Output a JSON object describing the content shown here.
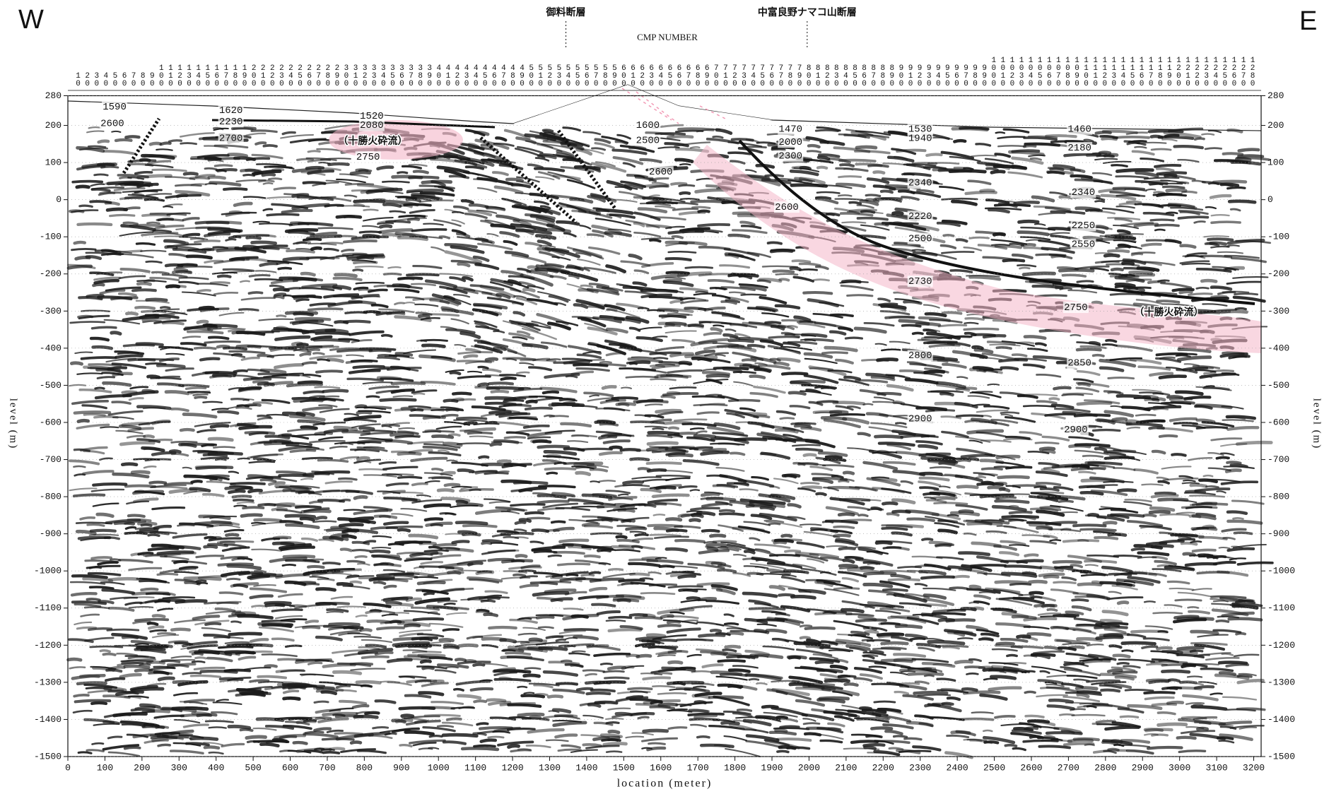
{
  "chart_data": {
    "type": "section",
    "west_label": "W",
    "east_label": "E",
    "cmp_label": "CMP NUMBER",
    "faults": [
      {
        "label": "御料断層",
        "x": 1344
      },
      {
        "label": "中富良野ナマコ山断層",
        "x": 1995
      }
    ],
    "cmp_numbers": [
      10,
      20,
      30,
      40,
      50,
      60,
      70,
      80,
      90,
      100,
      110,
      120,
      130,
      140,
      150,
      160,
      170,
      180,
      190,
      200,
      210,
      220,
      230,
      240,
      250,
      260,
      270,
      280,
      290,
      300,
      310,
      320,
      330,
      340,
      350,
      360,
      370,
      380,
      390,
      400,
      410,
      420,
      430,
      440,
      450,
      460,
      470,
      480,
      490,
      500,
      510,
      520,
      530,
      540,
      550,
      560,
      570,
      580,
      590,
      600,
      610,
      620,
      630,
      640,
      650,
      660,
      670,
      680,
      690,
      700,
      710,
      720,
      730,
      740,
      750,
      760,
      770,
      780,
      790,
      800,
      810,
      820,
      830,
      840,
      850,
      860,
      870,
      880,
      890,
      900,
      910,
      920,
      930,
      940,
      950,
      960,
      970,
      980,
      990,
      1000,
      1010,
      1020,
      1030,
      1040,
      1050,
      1060,
      1070,
      1080,
      1090,
      1100,
      1110,
      1120,
      1130,
      1140,
      1150,
      1160,
      1170,
      1180,
      1190,
      1200,
      1210,
      1220,
      1230,
      1240,
      1250,
      1260,
      1270,
      1280
    ],
    "xlabel": "location (meter)",
    "ylabel": "level (m)",
    "xlim": [
      0,
      3220
    ],
    "ylim": [
      -1500,
      280
    ],
    "xticks": [
      0,
      100,
      200,
      300,
      400,
      500,
      600,
      700,
      800,
      900,
      1000,
      1100,
      1200,
      1300,
      1400,
      1500,
      1600,
      1700,
      1800,
      1900,
      2000,
      2100,
      2200,
      2300,
      2400,
      2500,
      2600,
      2700,
      2800,
      2900,
      3000,
      3100,
      3200
    ],
    "yticks": [
      280,
      200,
      100,
      0,
      -100,
      -200,
      -300,
      -400,
      -500,
      -600,
      -700,
      -800,
      -900,
      -1000,
      -1100,
      -1200,
      -1300,
      -1400,
      -1500
    ],
    "grid": true,
    "velocity_labels": [
      {
        "value": 1590,
        "x": 126,
        "level": 250
      },
      {
        "value": 2600,
        "x": 120,
        "level": 205
      },
      {
        "value": 1620,
        "x": 440,
        "level": 240
      },
      {
        "value": 2230,
        "x": 440,
        "level": 210
      },
      {
        "value": 2700,
        "x": 440,
        "level": 165
      },
      {
        "value": 1520,
        "x": 820,
        "level": 225
      },
      {
        "value": 2080,
        "x": 820,
        "level": 200
      },
      {
        "value": 2750,
        "x": 810,
        "level": 115
      },
      {
        "value": 1600,
        "x": 1565,
        "level": 200
      },
      {
        "value": 2500,
        "x": 1565,
        "level": 160
      },
      {
        "value": 2600,
        "x": 1600,
        "level": 75
      },
      {
        "value": 1470,
        "x": 1950,
        "level": 190
      },
      {
        "value": 2000,
        "x": 1950,
        "level": 155
      },
      {
        "value": 2300,
        "x": 1950,
        "level": 118
      },
      {
        "value": 2600,
        "x": 1940,
        "level": -20
      },
      {
        "value": 1530,
        "x": 2300,
        "level": 190
      },
      {
        "value": 1940,
        "x": 2300,
        "level": 165
      },
      {
        "value": 2340,
        "x": 2300,
        "level": 45
      },
      {
        "value": 2220,
        "x": 2300,
        "level": -45
      },
      {
        "value": 2500,
        "x": 2300,
        "level": -105
      },
      {
        "value": 2730,
        "x": 2300,
        "level": -220
      },
      {
        "value": 2800,
        "x": 2300,
        "level": -420
      },
      {
        "value": 2900,
        "x": 2300,
        "level": -590
      },
      {
        "value": 1460,
        "x": 2730,
        "level": 190
      },
      {
        "value": 2180,
        "x": 2730,
        "level": 140
      },
      {
        "value": 2340,
        "x": 2740,
        "level": 20
      },
      {
        "value": 2250,
        "x": 2740,
        "level": -70
      },
      {
        "value": 2550,
        "x": 2740,
        "level": -120
      },
      {
        "value": 2750,
        "x": 2720,
        "level": -290
      },
      {
        "value": 2850,
        "x": 2730,
        "level": -440
      },
      {
        "value": 2900,
        "x": 2720,
        "level": -620
      }
    ],
    "unit_labels": [
      {
        "text": "（十勝火砕流）",
        "x": 823,
        "level": 157
      },
      {
        "text": "（十勝火砕流）",
        "x": 2971,
        "level": -304
      }
    ]
  }
}
